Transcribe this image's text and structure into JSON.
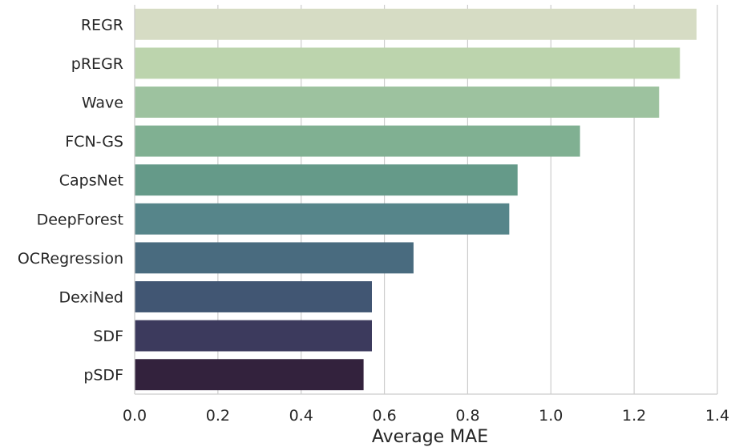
{
  "chart_data": {
    "type": "bar",
    "orientation": "horizontal",
    "categories": [
      "REGR",
      "pREGR",
      "Wave",
      "FCN-GS",
      "CapsNet",
      "DeepForest",
      "OCRegression",
      "DexiNed",
      "SDF",
      "pSDF"
    ],
    "values": [
      1.35,
      1.31,
      1.26,
      1.07,
      0.92,
      0.9,
      0.67,
      0.57,
      0.57,
      0.55
    ],
    "xlabel": "Average MAE",
    "ylabel": "",
    "xlim": [
      0.0,
      1.4
    ],
    "xticks": [
      "0.0",
      "0.2",
      "0.4",
      "0.6",
      "0.8",
      "1.0",
      "1.2",
      "1.4"
    ],
    "grid": "vertical",
    "colors": [
      "#d6dcc4",
      "#bcd4ad",
      "#9dc29f",
      "#80b092",
      "#659a89",
      "#56858a",
      "#496b7f",
      "#415673",
      "#3c3a5d",
      "#33223d"
    ]
  }
}
